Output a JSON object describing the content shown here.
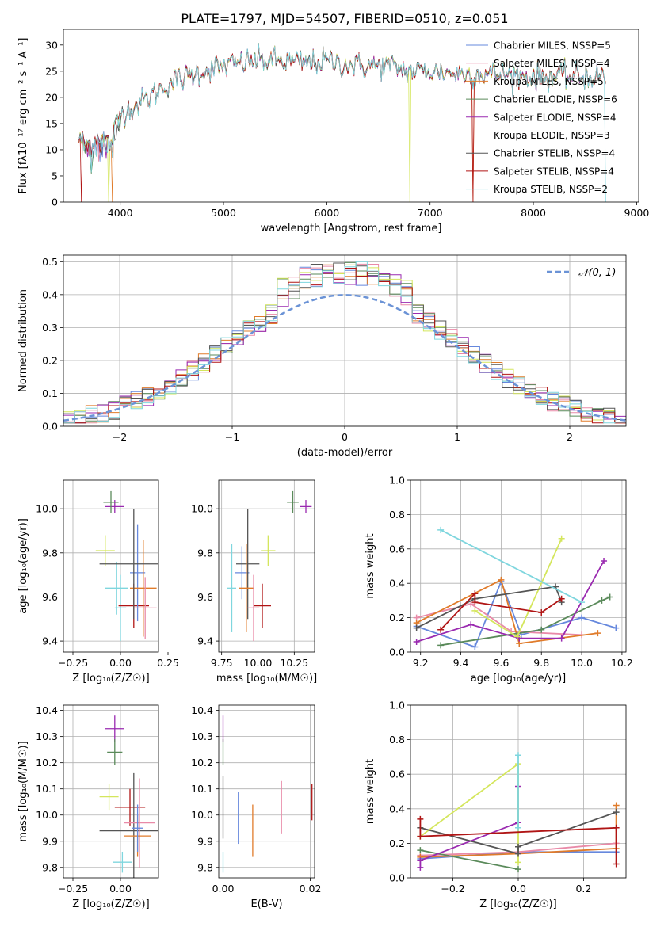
{
  "figure_title": "PLATE=1797, MJD=54507, FIBERID=0510, z=0.051",
  "colors": {
    "chabrier_miles": "#6688dd",
    "salpeter_miles": "#e98aa8",
    "kroupa_miles": "#e07b2a",
    "chabrier_elodie": "#5a8a5a",
    "salpeter_elodie": "#9a2ab0",
    "kroupa_elodie": "#d4e65c",
    "chabrier_stelib": "#555555",
    "salpeter_stelib": "#b01515",
    "kroupa_stelib": "#7fd6de",
    "normal_curve": "#6b93d6"
  },
  "chart_data": [
    {
      "id": "spectrum",
      "type": "line",
      "title": "PLATE=1797, MJD=54507, FIBERID=0510, z=0.051",
      "xlabel": "wavelength [Angstrom, rest frame]",
      "ylabel": "Flux [fλ10⁻¹⁷ erg cm⁻² s⁻¹ A⁻¹]",
      "xlim": [
        3450,
        9020
      ],
      "ylim": [
        0,
        33
      ],
      "xticks": [
        "4000",
        "5000",
        "6000",
        "7000",
        "8000",
        "9000"
      ],
      "yticks": [
        "0",
        "5",
        "10",
        "15",
        "20",
        "25",
        "30"
      ],
      "grid": false,
      "legend_position": "right",
      "continuum": [
        [
          3600,
          12
        ],
        [
          3700,
          11
        ],
        [
          3800,
          13
        ],
        [
          3900,
          11
        ],
        [
          4000,
          17
        ],
        [
          4200,
          19
        ],
        [
          4500,
          23
        ],
        [
          4800,
          25
        ],
        [
          5000,
          26
        ],
        [
          5300,
          27
        ],
        [
          5500,
          27
        ],
        [
          5800,
          26.5
        ],
        [
          6000,
          27
        ],
        [
          6300,
          26
        ],
        [
          6600,
          26
        ],
        [
          6800,
          25
        ],
        [
          7000,
          25
        ],
        [
          7300,
          24.5
        ],
        [
          7600,
          24.5
        ],
        [
          8000,
          24
        ],
        [
          8300,
          24
        ],
        [
          8600,
          24
        ],
        [
          8700,
          24
        ]
      ],
      "series": [
        {
          "name": "Chabrier MILES, NSSP=5",
          "color_key": "chabrier_miles"
        },
        {
          "name": "Salpeter MILES, NSSP=4",
          "color_key": "salpeter_miles"
        },
        {
          "name": "Kroupa MILES, NSSP=5",
          "color_key": "kroupa_miles",
          "cut": [
            3920,
            7420
          ]
        },
        {
          "name": "Chabrier ELODIE, NSSP=6",
          "color_key": "chabrier_elodie"
        },
        {
          "name": "Salpeter ELODIE, NSSP=4",
          "color_key": "salpeter_elodie"
        },
        {
          "name": "Kroupa ELODIE, NSSP=3",
          "color_key": "kroupa_elodie",
          "cut": [
            3890,
            6800
          ]
        },
        {
          "name": "Chabrier STELIB, NSSP=4",
          "color_key": "chabrier_stelib"
        },
        {
          "name": "Salpeter STELIB, NSSP=4",
          "color_key": "salpeter_stelib",
          "cut": [
            3620,
            7420
          ]
        },
        {
          "name": "Kroupa STELIB, NSSP=2",
          "color_key": "kroupa_stelib",
          "cut": [
            3750,
            8700
          ]
        }
      ]
    },
    {
      "id": "residuals",
      "type": "line",
      "xlabel": "(data-model)/error",
      "ylabel": "Normed distribution",
      "xlim": [
        -2.5,
        2.5
      ],
      "ylim": [
        0,
        0.52
      ],
      "xticks": [
        "−2",
        "−1",
        "0",
        "1",
        "2"
      ],
      "yticks": [
        "0.0",
        "0.1",
        "0.2",
        "0.3",
        "0.4",
        "0.5"
      ],
      "grid": true,
      "legend": "𝒩(0, 1)",
      "legend_position": "top-right",
      "bin_width": 0.1
    },
    {
      "id": "age_vs_Z",
      "type": "scatter",
      "xlabel": "Z [log₁₀(Z/Z☉)]",
      "ylabel": "age  [log₁₀(age/yr)]",
      "xlim": [
        -0.3,
        0.2
      ],
      "ylim": [
        9.35,
        10.13
      ],
      "xticks": [
        "−0.25",
        "0.00",
        "0.25"
      ],
      "yticks": [
        "9.4",
        "9.6",
        "9.8",
        "10.0"
      ],
      "grid": true,
      "points": [
        {
          "x": -0.08,
          "y": 9.81,
          "dx": 0.05,
          "dy": 0.07,
          "color_key": "kroupa_elodie"
        },
        {
          "x": -0.03,
          "y": 10.01,
          "dx": 0.05,
          "dy": 0.03,
          "color_key": "salpeter_elodie"
        },
        {
          "x": -0.05,
          "y": 10.03,
          "dx": 0.04,
          "dy": 0.05,
          "color_key": "chabrier_elodie"
        },
        {
          "x": -0.02,
          "y": 9.64,
          "dx": 0.06,
          "dy": 0.12,
          "color_key": "kroupa_stelib"
        },
        {
          "x": 0.0,
          "y": 9.55,
          "dx": 0.03,
          "dy": 0.15,
          "color_key": "kroupa_stelib"
        },
        {
          "x": 0.07,
          "y": 9.56,
          "dx": 0.08,
          "dy": 0.1,
          "color_key": "salpeter_stelib"
        },
        {
          "x": 0.09,
          "y": 9.71,
          "dx": 0.04,
          "dy": 0.22,
          "color_key": "chabrier_miles"
        },
        {
          "x": 0.12,
          "y": 9.64,
          "dx": 0.07,
          "dy": 0.22,
          "color_key": "kroupa_miles"
        },
        {
          "x": 0.13,
          "y": 9.55,
          "dx": 0.06,
          "dy": 0.14,
          "color_key": "salpeter_miles"
        },
        {
          "x": 0.07,
          "y": 9.75,
          "dx": 0.18,
          "dy": 0.25,
          "color_key": "chabrier_stelib"
        }
      ]
    },
    {
      "id": "age_vs_mass",
      "type": "scatter",
      "xlabel": "mass [log₁₀(M/M☉)]",
      "xlim": [
        9.73,
        10.39
      ],
      "ylim": [
        9.35,
        10.13
      ],
      "xticks": [
        "9.75",
        "10.00",
        "10.25"
      ],
      "yticks": [
        "9.4",
        "9.6",
        "9.8",
        "10.0"
      ],
      "grid": true,
      "points": [
        {
          "x": 9.82,
          "y": 9.64,
          "dx": 0.03,
          "dy": 0.2,
          "color_key": "kroupa_stelib"
        },
        {
          "x": 9.89,
          "y": 9.71,
          "dx": 0.05,
          "dy": 0.12,
          "color_key": "chabrier_miles"
        },
        {
          "x": 9.93,
          "y": 9.75,
          "dx": 0.08,
          "dy": 0.25,
          "color_key": "chabrier_stelib"
        },
        {
          "x": 9.92,
          "y": 9.64,
          "dx": 0.05,
          "dy": 0.2,
          "color_key": "kroupa_miles"
        },
        {
          "x": 9.97,
          "y": 9.55,
          "dx": 0.04,
          "dy": 0.15,
          "color_key": "salpeter_miles"
        },
        {
          "x": 10.03,
          "y": 9.56,
          "dx": 0.06,
          "dy": 0.1,
          "color_key": "salpeter_stelib"
        },
        {
          "x": 10.07,
          "y": 9.81,
          "dx": 0.05,
          "dy": 0.07,
          "color_key": "kroupa_elodie"
        },
        {
          "x": 10.24,
          "y": 10.03,
          "dx": 0.04,
          "dy": 0.05,
          "color_key": "chabrier_elodie"
        },
        {
          "x": 10.33,
          "y": 10.01,
          "dx": 0.04,
          "dy": 0.03,
          "color_key": "salpeter_elodie"
        }
      ]
    },
    {
      "id": "weight_vs_age",
      "type": "line",
      "xlabel": "age  [log₁₀(age/yr)]",
      "ylabel": "mass weight",
      "xlim": [
        9.15,
        10.22
      ],
      "ylim": [
        0,
        1
      ],
      "xticks": [
        "9.2",
        "9.4",
        "9.6",
        "9.8",
        "10.0",
        "10.2"
      ],
      "yticks": [
        "0.0",
        "0.2",
        "0.4",
        "0.6",
        "0.8",
        "1.0"
      ],
      "grid": true,
      "series": [
        {
          "name": "Chabrier MILES",
          "color_key": "chabrier_miles",
          "points": [
            [
              9.18,
              0.15
            ],
            [
              9.47,
              0.03
            ],
            [
              9.6,
              0.41
            ],
            [
              9.7,
              0.1
            ],
            [
              10.0,
              0.2
            ],
            [
              10.17,
              0.14
            ]
          ]
        },
        {
          "name": "Salpeter MILES",
          "color_key": "salpeter_miles",
          "points": [
            [
              9.18,
              0.2
            ],
            [
              9.45,
              0.28
            ],
            [
              9.65,
              0.12
            ],
            [
              10.0,
              0.1
            ]
          ]
        },
        {
          "name": "Kroupa MILES",
          "color_key": "kroupa_miles",
          "points": [
            [
              9.18,
              0.17
            ],
            [
              9.6,
              0.42
            ],
            [
              9.69,
              0.05
            ],
            [
              10.08,
              0.11
            ]
          ]
        },
        {
          "name": "Chabrier ELODIE",
          "color_key": "chabrier_elodie",
          "points": [
            [
              9.3,
              0.04
            ],
            [
              9.8,
              0.13
            ],
            [
              10.1,
              0.3
            ],
            [
              10.14,
              0.32
            ]
          ]
        },
        {
          "name": "Salpeter ELODIE",
          "color_key": "salpeter_elodie",
          "points": [
            [
              9.18,
              0.06
            ],
            [
              9.45,
              0.16
            ],
            [
              9.69,
              0.08
            ],
            [
              9.9,
              0.08
            ],
            [
              10.11,
              0.53
            ]
          ]
        },
        {
          "name": "Kroupa ELODIE",
          "color_key": "kroupa_elodie",
          "points": [
            [
              9.47,
              0.24
            ],
            [
              9.68,
              0.09
            ],
            [
              9.9,
              0.66
            ]
          ]
        },
        {
          "name": "Chabrier STELIB",
          "color_key": "chabrier_stelib",
          "points": [
            [
              9.18,
              0.14
            ],
            [
              9.47,
              0.31
            ],
            [
              9.87,
              0.38
            ],
            [
              9.9,
              0.29
            ]
          ]
        },
        {
          "name": "Salpeter STELIB",
          "color_key": "salpeter_stelib",
          "points": [
            [
              9.3,
              0.13
            ],
            [
              9.47,
              0.34
            ],
            [
              9.47,
              0.29
            ],
            [
              9.8,
              0.23
            ],
            [
              9.9,
              0.31
            ]
          ]
        },
        {
          "name": "Kroupa STELIB",
          "color_key": "kroupa_stelib",
          "points": [
            [
              9.3,
              0.71
            ],
            [
              10.0,
              0.29
            ]
          ]
        }
      ]
    },
    {
      "id": "mass_vs_Z",
      "type": "scatter",
      "xlabel": "Z [log₁₀(Z/Z☉)]",
      "ylabel": "mass [log₁₀(M/M☉)]",
      "xlim": [
        -0.3,
        0.2
      ],
      "ylim": [
        9.76,
        10.42
      ],
      "xticks": [
        "−0.25",
        "0.00"
      ],
      "yticks": [
        "9.8",
        "9.9",
        "10.0",
        "10.1",
        "10.2",
        "10.3",
        "10.4"
      ],
      "grid": true,
      "points": [
        {
          "x": -0.03,
          "y": 10.33,
          "dx": 0.05,
          "dy": 0.05,
          "color_key": "salpeter_elodie"
        },
        {
          "x": -0.03,
          "y": 10.24,
          "dx": 0.04,
          "dy": 0.05,
          "color_key": "chabrier_elodie"
        },
        {
          "x": -0.06,
          "y": 10.07,
          "dx": 0.05,
          "dy": 0.05,
          "color_key": "kroupa_elodie"
        },
        {
          "x": 0.01,
          "y": 9.82,
          "dx": 0.05,
          "dy": 0.04,
          "color_key": "kroupa_stelib"
        },
        {
          "x": 0.05,
          "y": 10.03,
          "dx": 0.08,
          "dy": 0.07,
          "color_key": "salpeter_stelib"
        },
        {
          "x": 0.07,
          "y": 9.94,
          "dx": 0.18,
          "dy": 0.22,
          "color_key": "chabrier_stelib"
        },
        {
          "x": 0.1,
          "y": 9.97,
          "dx": 0.08,
          "dy": 0.17,
          "color_key": "salpeter_miles"
        },
        {
          "x": 0.09,
          "y": 9.92,
          "dx": 0.07,
          "dy": 0.08,
          "color_key": "kroupa_miles"
        },
        {
          "x": 0.09,
          "y": 9.95,
          "dx": 0.03,
          "dy": 0.09,
          "color_key": "chabrier_miles"
        }
      ]
    },
    {
      "id": "mass_vs_ebv",
      "type": "scatter",
      "xlabel": "E(B-V)",
      "xlim": [
        -0.001,
        0.021
      ],
      "ylim": [
        9.76,
        10.42
      ],
      "xticks": [
        "0.00",
        "0.02"
      ],
      "yticks": [
        "9.8",
        "9.9",
        "10.0",
        "10.1",
        "10.2",
        "10.3",
        "10.4"
      ],
      "grid": true,
      "points": [
        {
          "x": 0.0,
          "y": 10.33,
          "dy": 0.05,
          "color_key": "salpeter_elodie"
        },
        {
          "x": 0.0,
          "y": 10.24,
          "dy": 0.05,
          "color_key": "chabrier_elodie"
        },
        {
          "x": 0.0,
          "y": 10.03,
          "dy": 0.12,
          "color_key": "chabrier_stelib"
        },
        {
          "x": 0.0,
          "y": 9.82,
          "dy": 0.04,
          "color_key": "kroupa_stelib"
        },
        {
          "x": 0.0035,
          "y": 9.99,
          "dy": 0.1,
          "color_key": "chabrier_miles"
        },
        {
          "x": 0.0068,
          "y": 9.94,
          "dy": 0.1,
          "color_key": "kroupa_miles"
        },
        {
          "x": 0.0134,
          "y": 10.03,
          "dy": 0.1,
          "color_key": "salpeter_miles"
        },
        {
          "x": 0.0204,
          "y": 10.05,
          "dy": 0.07,
          "color_key": "salpeter_stelib"
        }
      ]
    },
    {
      "id": "weight_vs_Z",
      "type": "line",
      "xlabel": "Z [log₁₀(Z/Z☉)]",
      "ylabel": "mass weight",
      "xlim": [
        -0.33,
        0.33
      ],
      "ylim": [
        0,
        1
      ],
      "xticks": [
        "−0.2",
        "0.0",
        "0.2"
      ],
      "yticks": [
        "0.0",
        "0.2",
        "0.4",
        "0.6",
        "0.8",
        "1.0"
      ],
      "grid": true,
      "series": [
        {
          "name": "Chabrier MILES",
          "color_key": "chabrier_miles",
          "points": [
            [
              -0.3,
              0.11
            ],
            [
              0.0,
              0.15
            ],
            [
              0.3,
              0.15
            ]
          ]
        },
        {
          "name": "Salpeter MILES",
          "color_key": "salpeter_miles",
          "points": [
            [
              -0.3,
              0.13
            ],
            [
              0.0,
              0.15
            ],
            [
              0.3,
              0.2
            ]
          ]
        },
        {
          "name": "Kroupa MILES",
          "color_key": "kroupa_miles",
          "points": [
            [
              -0.3,
              0.12
            ],
            [
              0.0,
              0.14
            ],
            [
              0.3,
              0.17
            ],
            [
              0.3,
              0.42
            ]
          ]
        },
        {
          "name": "Chabrier ELODIE",
          "color_key": "chabrier_elodie",
          "points": [
            [
              -0.3,
              0.16
            ],
            [
              0.0,
              0.05
            ]
          ]
        },
        {
          "name": "Salpeter ELODIE",
          "color_key": "salpeter_elodie",
          "points": [
            [
              -0.3,
              0.06
            ],
            [
              -0.3,
              0.1
            ],
            [
              0.0,
              0.32
            ],
            [
              0.0,
              0.53
            ]
          ]
        },
        {
          "name": "Kroupa ELODIE",
          "color_key": "kroupa_elodie",
          "points": [
            [
              -0.3,
              0.24
            ],
            [
              0.0,
              0.66
            ],
            [
              0.0,
              0.09
            ]
          ]
        },
        {
          "name": "Chabrier STELIB",
          "color_key": "chabrier_stelib",
          "points": [
            [
              -0.3,
              0.29
            ],
            [
              0.0,
              0.14
            ],
            [
              0.0,
              0.18
            ],
            [
              0.3,
              0.38
            ]
          ]
        },
        {
          "name": "Salpeter STELIB",
          "color_key": "salpeter_stelib",
          "points": [
            [
              -0.3,
              0.34
            ],
            [
              -0.3,
              0.24
            ],
            [
              0.3,
              0.29
            ],
            [
              0.3,
              0.08
            ]
          ]
        },
        {
          "name": "Kroupa STELIB",
          "color_key": "kroupa_stelib",
          "points": [
            [
              0.0,
              0.71
            ],
            [
              0.0,
              0.29
            ]
          ]
        }
      ]
    }
  ]
}
